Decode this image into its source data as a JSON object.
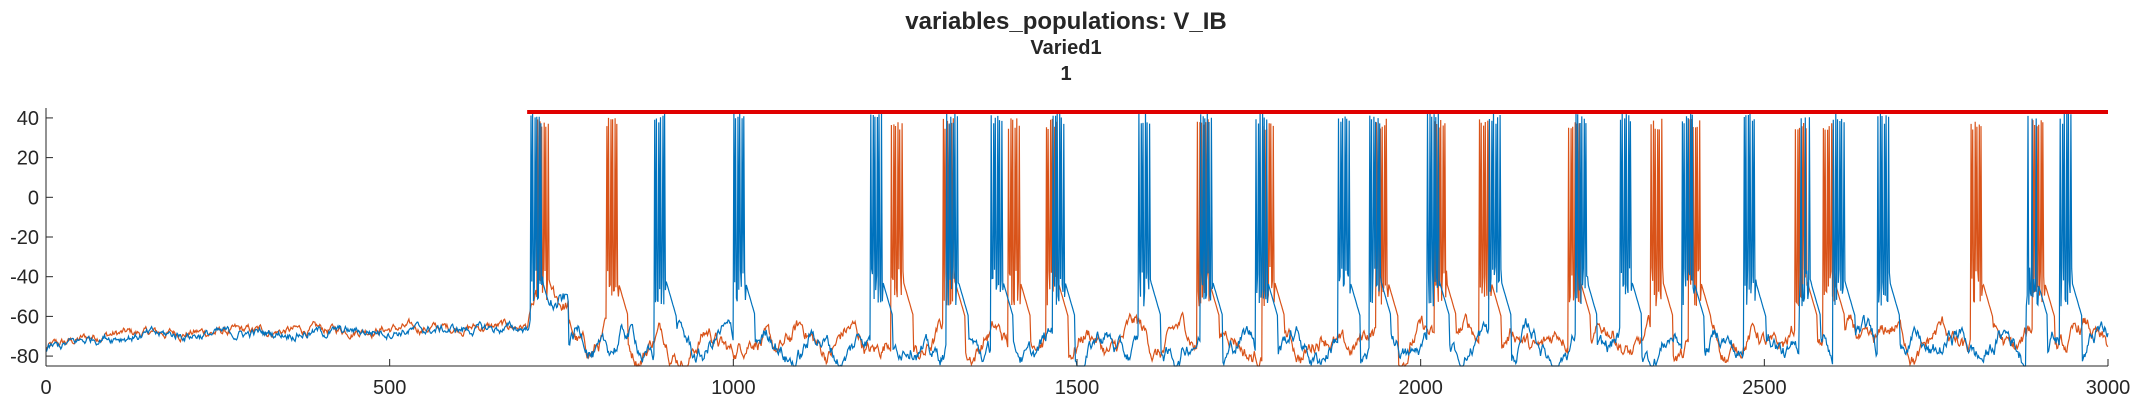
{
  "figure": {
    "title": "variables_populations: V_IB",
    "subtitle": "Varied1",
    "subtitle2": "1"
  },
  "colors": {
    "series1": "#0072BD",
    "series2": "#D95319",
    "threshold": "#E00000",
    "axis": "#262626",
    "background": "#FFFFFF"
  },
  "chart_data": {
    "type": "line",
    "title": "variables_populations: V_IB",
    "subtitle": [
      "Varied1",
      "1"
    ],
    "xlabel": "",
    "ylabel": "",
    "xlim": [
      0,
      3000
    ],
    "ylim": [
      -85,
      45
    ],
    "xticks": [
      0,
      500,
      1000,
      1500,
      2000,
      2500,
      3000
    ],
    "yticks": [
      -80,
      -60,
      -40,
      -20,
      0,
      20,
      40
    ],
    "grid": false,
    "legend": "none",
    "baseline": {
      "x": [
        0,
        80,
        700,
        710
      ],
      "y": [
        -77,
        -70,
        -66,
        -54
      ]
    },
    "series": [
      {
        "color": "#0072BD",
        "burst_onsets": [
          705,
          885,
          1000,
          1200,
          1310,
          1375,
          1465,
          1590,
          1680,
          1760,
          1880,
          1925,
          2010,
          2100,
          2225,
          2290,
          2380,
          2470,
          2550,
          2600,
          2665,
          2880,
          2930
        ],
        "spike_peak": 43,
        "rest_mean": -75
      },
      {
        "color": "#D95319",
        "burst_onsets": [
          715,
          815,
          1230,
          1305,
          1400,
          1455,
          1675,
          1770,
          1935,
          2020,
          2085,
          2215,
          2335,
          2390,
          2545,
          2585,
          2800,
          2890
        ],
        "spike_peak": 40,
        "rest_mean": -73
      },
      {
        "color": "#E00000",
        "x": [
          700,
          3000
        ],
        "y": [
          43,
          43
        ]
      }
    ]
  }
}
